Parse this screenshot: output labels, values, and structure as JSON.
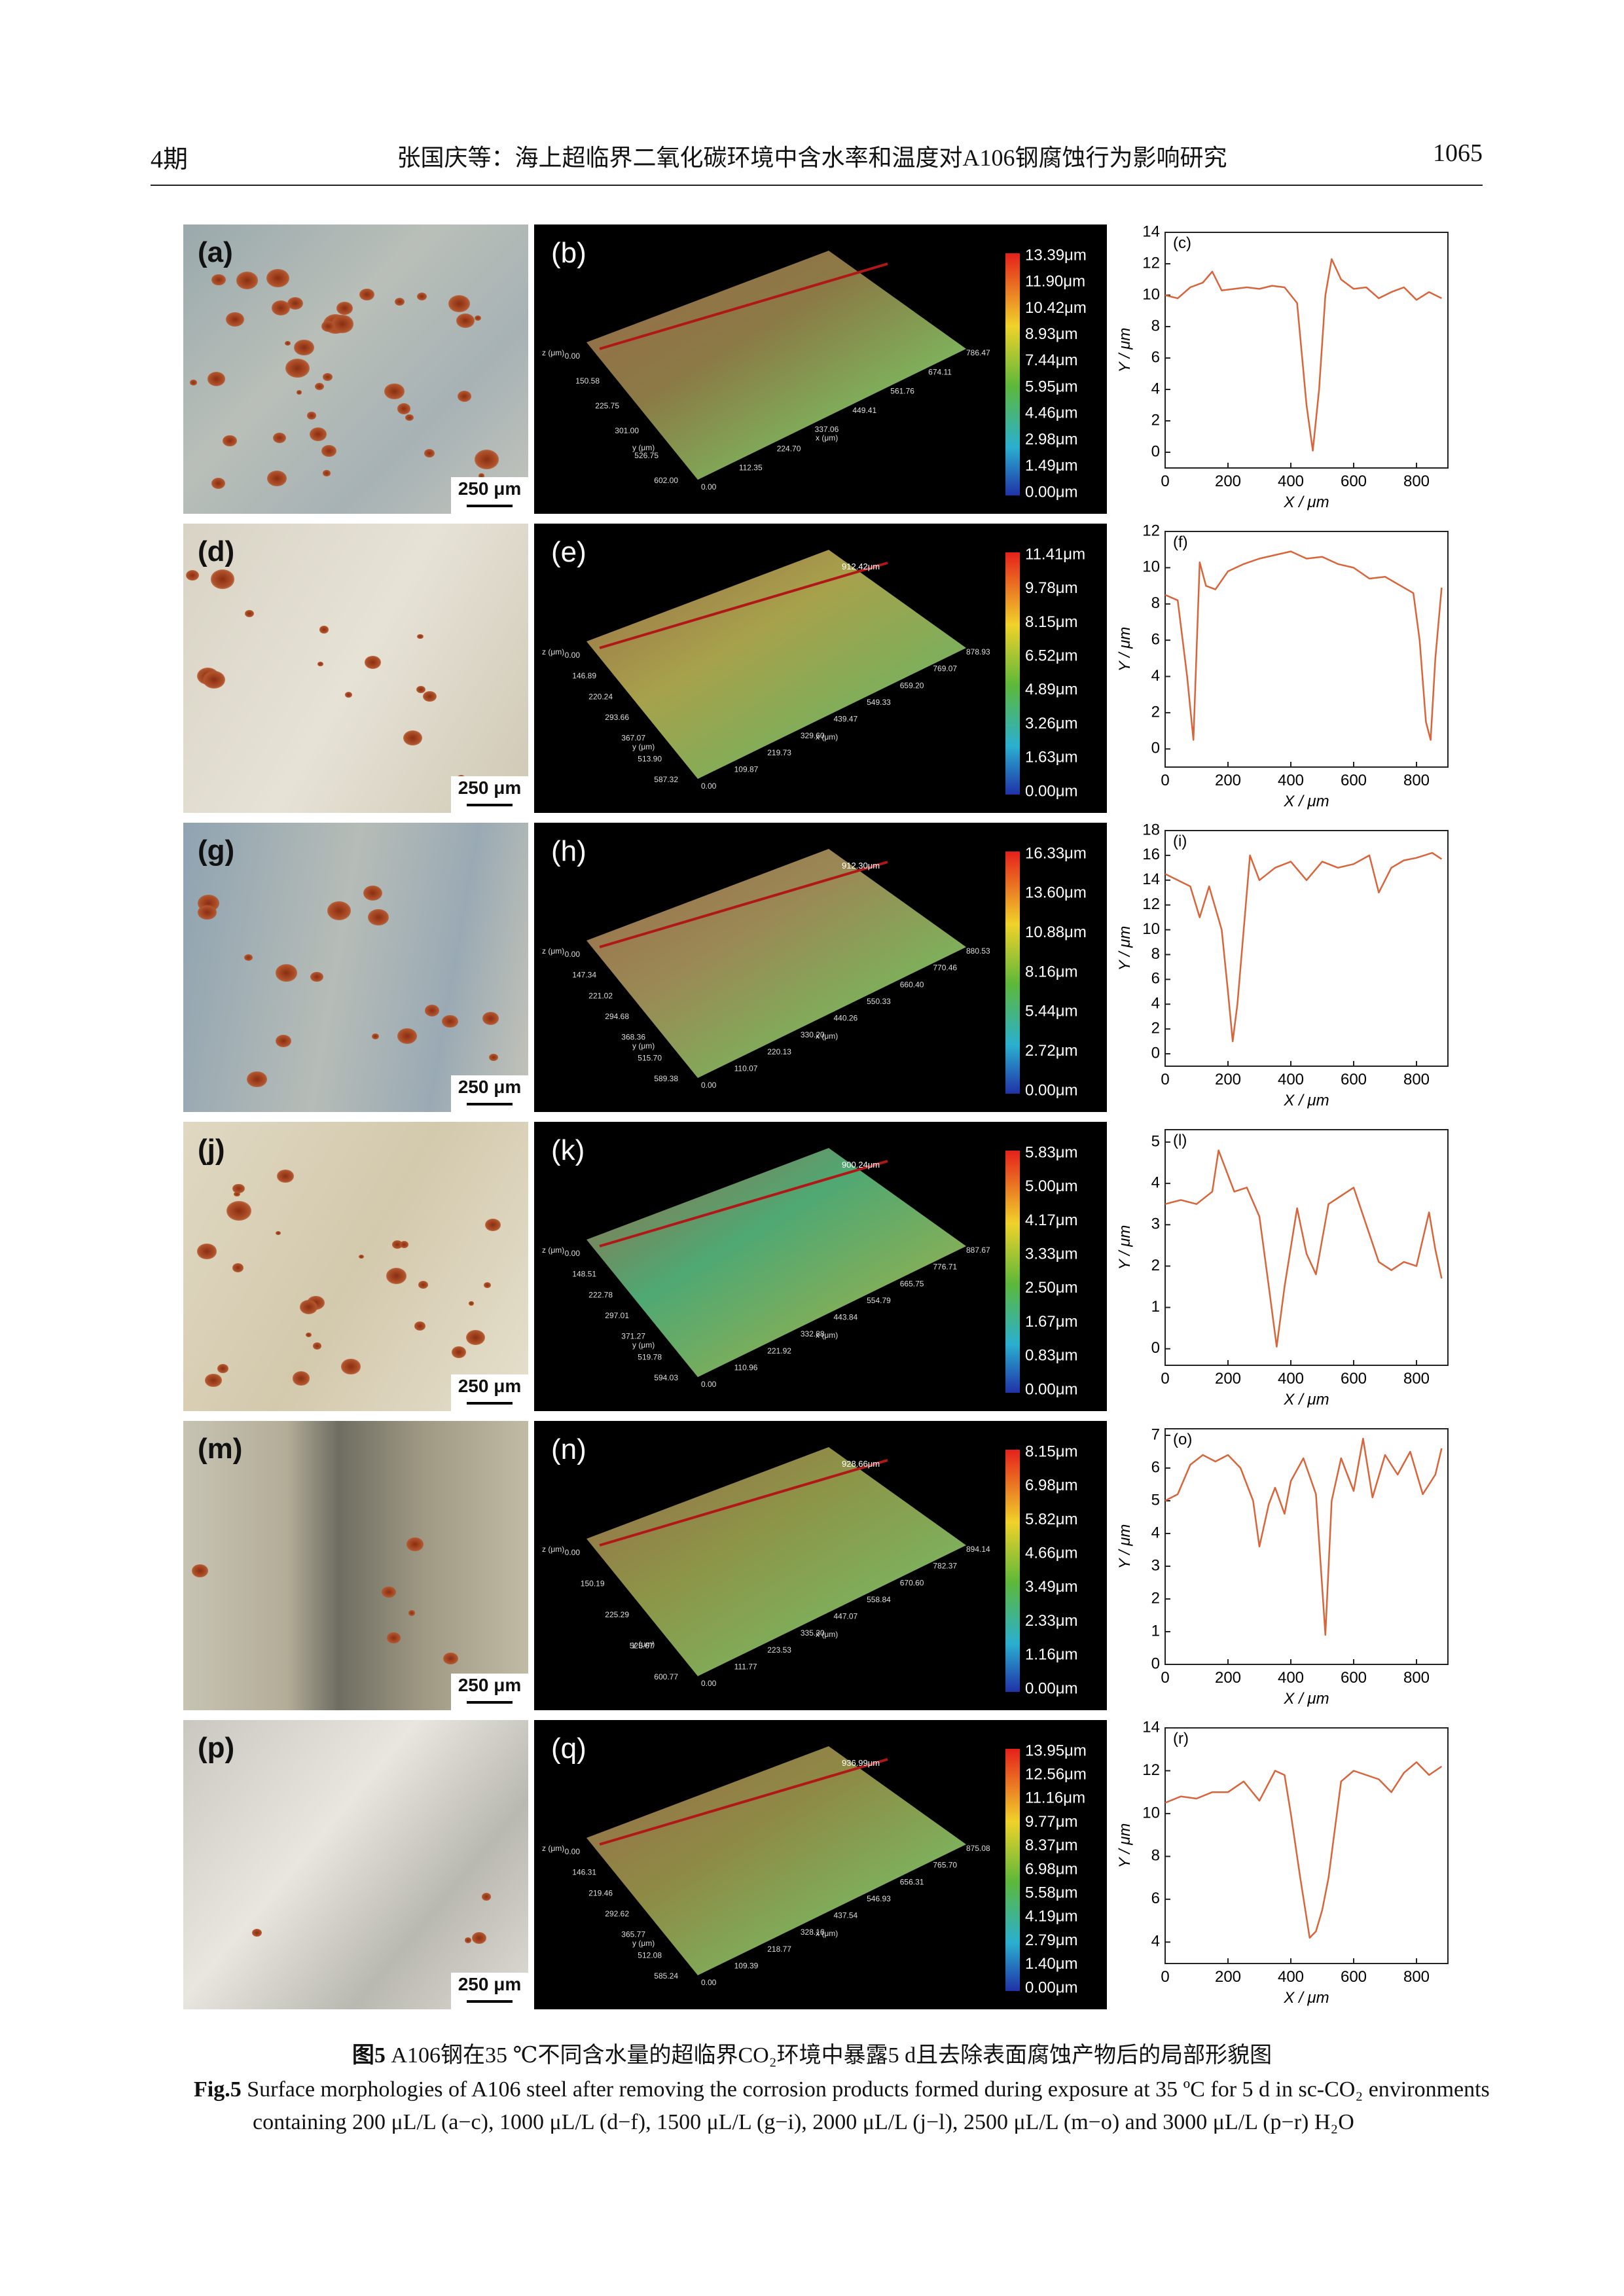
{
  "header": {
    "issue": "4期",
    "title": "张国庆等：海上超临界二氧化碳环境中含水率和温度对A106钢腐蚀行为影响研究",
    "page": "1065"
  },
  "figure": {
    "scale_bar": "250 μm",
    "y_label": "Y / μm",
    "x_label": "X / μm",
    "z_axis": "z (μm)",
    "y_axis": "y (μm)",
    "x_axis": "x (μm)",
    "rows": [
      {
        "micro_label": "(a)",
        "map_label": "(b)",
        "profile_label": "(c)",
        "colorbar": [
          "13.39μm",
          "11.90μm",
          "10.42μm",
          "8.93μm",
          "7.44μm",
          "5.95μm",
          "4.46μm",
          "2.98μm",
          "1.49μm",
          "0.00μm"
        ],
        "map_x_ticks": [
          "0.00",
          "112.35",
          "224.70",
          "337.06",
          "449.41",
          "561.76",
          "674.11",
          "786.47"
        ],
        "map_y_ticks": [
          "0.00",
          "150.58",
          "225.75",
          "301.00",
          "526.75",
          "602.00"
        ],
        "profile": {
          "x": [
            0,
            40,
            80,
            120,
            150,
            180,
            220,
            260,
            300,
            340,
            380,
            420,
            450,
            470,
            490,
            510,
            530,
            560,
            600,
            640,
            680,
            720,
            760,
            800,
            840,
            880
          ],
          "values": [
            10,
            9.8,
            10.5,
            10.8,
            11.5,
            10.3,
            10.4,
            10.5,
            10.4,
            10.6,
            10.5,
            9.5,
            3,
            0.1,
            4,
            10,
            12.3,
            11,
            10.4,
            10.5,
            9.8,
            10.2,
            10.5,
            9.7,
            10.2,
            9.8
          ],
          "xlim": [
            0,
            900
          ],
          "xticks": [
            0,
            200,
            400,
            600,
            800
          ],
          "ylim": [
            -1,
            14
          ],
          "yticks": [
            0,
            2,
            4,
            6,
            8,
            10,
            12,
            14
          ]
        }
      },
      {
        "micro_label": "(d)",
        "map_label": "(e)",
        "profile_label": "(f)",
        "marker": "912.42μm",
        "colorbar": [
          "11.41μm",
          "9.78μm",
          "8.15μm",
          "6.52μm",
          "4.89μm",
          "3.26μm",
          "1.63μm",
          "0.00μm"
        ],
        "map_x_ticks": [
          "0.00",
          "109.87",
          "219.73",
          "329.60",
          "439.47",
          "549.33",
          "659.20",
          "769.07",
          "878.93"
        ],
        "map_y_ticks": [
          "0.00",
          "146.89",
          "220.24",
          "293.66",
          "367.07",
          "513.90",
          "587.32"
        ],
        "profile": {
          "x": [
            0,
            40,
            70,
            90,
            110,
            130,
            160,
            200,
            250,
            300,
            350,
            400,
            450,
            500,
            550,
            600,
            650,
            700,
            750,
            790,
            810,
            830,
            845,
            860,
            880
          ],
          "values": [
            8.5,
            8.2,
            4,
            0.5,
            10.3,
            9,
            8.8,
            9.8,
            10.2,
            10.5,
            10.7,
            10.9,
            10.5,
            10.6,
            10.2,
            10,
            9.4,
            9.5,
            9,
            8.6,
            6,
            1.5,
            0.5,
            5,
            8.9
          ],
          "xlim": [
            0,
            900
          ],
          "xticks": [
            0,
            200,
            400,
            600,
            800
          ],
          "ylim": [
            -1,
            12
          ],
          "yticks": [
            0,
            2,
            4,
            6,
            8,
            10,
            12
          ]
        }
      },
      {
        "micro_label": "(g)",
        "map_label": "(h)",
        "profile_label": "(i)",
        "marker": "912.30μm",
        "colorbar": [
          "16.33μm",
          "13.60μm",
          "10.88μm",
          "8.16μm",
          "5.44μm",
          "2.72μm",
          "0.00μm"
        ],
        "map_x_ticks": [
          "0.00",
          "110.07",
          "220.13",
          "330.20",
          "440.26",
          "550.33",
          "660.40",
          "770.46",
          "880.53"
        ],
        "map_y_ticks": [
          "0.00",
          "147.34",
          "221.02",
          "294.68",
          "368.36",
          "515.70",
          "589.38"
        ],
        "profile": {
          "x": [
            0,
            40,
            80,
            110,
            140,
            180,
            200,
            215,
            230,
            250,
            270,
            300,
            350,
            400,
            450,
            500,
            550,
            600,
            650,
            680,
            720,
            760,
            800,
            850,
            880
          ],
          "values": [
            14.5,
            14,
            13.5,
            11,
            13.5,
            10,
            5,
            1,
            4,
            10,
            16,
            14,
            15,
            15.5,
            14,
            15.5,
            15,
            15.3,
            16,
            13,
            15,
            15.6,
            15.8,
            16.2,
            15.7
          ],
          "xlim": [
            0,
            900
          ],
          "xticks": [
            0,
            200,
            400,
            600,
            800
          ],
          "ylim": [
            -1,
            18
          ],
          "yticks": [
            0,
            2,
            4,
            6,
            8,
            10,
            12,
            14,
            16,
            18
          ]
        }
      },
      {
        "micro_label": "(j)",
        "map_label": "(k)",
        "profile_label": "(l)",
        "marker": "900.24μm",
        "colorbar": [
          "5.83μm",
          "5.00μm",
          "4.17μm",
          "3.33μm",
          "2.50μm",
          "1.67μm",
          "0.83μm",
          "0.00μm"
        ],
        "map_x_ticks": [
          "0.00",
          "110.96",
          "221.92",
          "332.88",
          "443.84",
          "554.79",
          "665.75",
          "776.71",
          "887.67"
        ],
        "map_y_ticks": [
          "0.00",
          "148.51",
          "222.78",
          "297.01",
          "371.27",
          "519.78",
          "594.03"
        ],
        "profile": {
          "x": [
            0,
            50,
            100,
            150,
            170,
            190,
            220,
            260,
            300,
            330,
            355,
            380,
            420,
            450,
            480,
            520,
            560,
            600,
            640,
            680,
            720,
            760,
            800,
            840,
            860,
            880
          ],
          "values": [
            3.5,
            3.6,
            3.5,
            3.8,
            4.8,
            4.4,
            3.8,
            3.9,
            3.2,
            1.5,
            0.05,
            1.5,
            3.4,
            2.3,
            1.8,
            3.5,
            3.7,
            3.9,
            3,
            2.1,
            1.9,
            2.1,
            2,
            3.3,
            2.4,
            1.7
          ],
          "xlim": [
            0,
            900
          ],
          "xticks": [
            0,
            200,
            400,
            600,
            800
          ],
          "ylim": [
            -0.4,
            5.3
          ],
          "yticks": [
            0,
            1,
            2,
            3,
            4,
            5
          ]
        }
      },
      {
        "micro_label": "(m)",
        "map_label": "(n)",
        "profile_label": "(o)",
        "marker": "928.66μm",
        "colorbar": [
          "8.15μm",
          "6.98μm",
          "5.82μm",
          "4.66μm",
          "3.49μm",
          "2.33μm",
          "1.16μm",
          "0.00μm"
        ],
        "map_x_ticks": [
          "0.00",
          "111.77",
          "223.53",
          "335.30",
          "447.07",
          "558.84",
          "670.60",
          "782.37",
          "894.14"
        ],
        "map_y_ticks": [
          "0.00",
          "150.19",
          "225.29",
          "525.67",
          "600.77"
        ],
        "profile": {
          "x": [
            0,
            40,
            80,
            120,
            160,
            200,
            240,
            280,
            300,
            330,
            350,
            380,
            400,
            440,
            480,
            510,
            530,
            560,
            600,
            630,
            660,
            700,
            740,
            780,
            820,
            860,
            880
          ],
          "values": [
            5,
            5.2,
            6.1,
            6.4,
            6.2,
            6.4,
            6,
            5,
            3.6,
            4.9,
            5.4,
            4.6,
            5.6,
            6.3,
            5.2,
            0.9,
            5,
            6.3,
            5.3,
            6.9,
            5.1,
            6.4,
            5.8,
            6.5,
            5.2,
            5.8,
            6.6
          ],
          "xlim": [
            0,
            900
          ],
          "xticks": [
            0,
            200,
            400,
            600,
            800
          ],
          "ylim": [
            0,
            7.2
          ],
          "yticks": [
            0,
            1,
            2,
            3,
            4,
            5,
            6,
            7
          ]
        }
      },
      {
        "micro_label": "(p)",
        "map_label": "(q)",
        "profile_label": "(r)",
        "marker": "936.99μm",
        "colorbar": [
          "13.95μm",
          "12.56μm",
          "11.16μm",
          "9.77μm",
          "8.37μm",
          "6.98μm",
          "5.58μm",
          "4.19μm",
          "2.79μm",
          "1.40μm",
          "0.00μm"
        ],
        "map_x_ticks": [
          "0.00",
          "109.39",
          "218.77",
          "328.16",
          "437.54",
          "546.93",
          "656.31",
          "765.70",
          "875.08"
        ],
        "map_y_ticks": [
          "0.00",
          "146.31",
          "219.46",
          "292.62",
          "365.77",
          "512.08",
          "585.24"
        ],
        "profile": {
          "x": [
            0,
            50,
            100,
            150,
            200,
            250,
            300,
            350,
            380,
            400,
            430,
            460,
            480,
            500,
            520,
            560,
            600,
            640,
            680,
            720,
            760,
            800,
            840,
            880
          ],
          "values": [
            10.5,
            10.8,
            10.7,
            11,
            11,
            11.5,
            10.6,
            12,
            11.8,
            10,
            7,
            4.2,
            4.5,
            5.5,
            7,
            11.5,
            12,
            11.8,
            11.6,
            11,
            11.9,
            12.4,
            11.8,
            12.2
          ],
          "xlim": [
            0,
            900
          ],
          "xticks": [
            0,
            200,
            400,
            600,
            800
          ],
          "ylim": [
            3,
            14
          ],
          "yticks": [
            4,
            6,
            8,
            10,
            12,
            14
          ]
        }
      }
    ]
  },
  "caption": {
    "cn_label": "图5",
    "cn_text": "A106钢在35 ℃不同含水量的超临界CO₂环境中暴露5 d且去除表面腐蚀产物后的局部形貌图",
    "en_label": "Fig.5",
    "en_text": "Surface morphologies of A106 steel after removing the corrosion products formed during exposure at 35 ºC for 5 d in sc-CO₂ environments containing 200 μL/L (a−c), 1000 μL/L (d−f), 1500 μL/L (g−i), 2000 μL/L (j−l), 2500 μL/L (m−o) and 3000 μL/L (p−r) H₂O"
  }
}
